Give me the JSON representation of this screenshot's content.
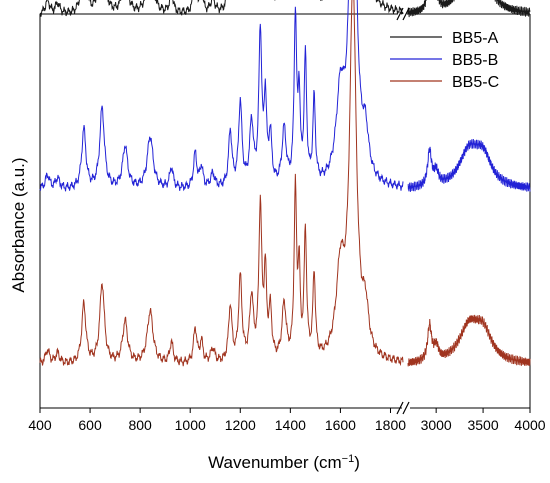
{
  "chart_data": {
    "type": "line",
    "xlabel": "Wavenumber (cm",
    "xlabel_superscript": "−1",
    "xlabel_suffix": ")",
    "ylabel": "Absorbance (a.u.)",
    "x_axis": {
      "segments": [
        {
          "range": [
            400,
            1850
          ],
          "ticks": [
            400,
            600,
            800,
            1000,
            1200,
            1400,
            1600,
            1800
          ]
        },
        {
          "range": [
            2700,
            4000
          ],
          "ticks": [
            3000,
            3500,
            4000
          ]
        }
      ],
      "break_between": [
        1850,
        2700
      ]
    },
    "y_axis": {
      "ticks_visible": false,
      "range": [
        0,
        1
      ]
    },
    "grid": false,
    "legend_placement": "top-right",
    "series": [
      {
        "name": "BB5-A",
        "color": "#1a1a1a",
        "offset": 0.5
      },
      {
        "name": "BB5-B",
        "color": "#2323d6",
        "offset": 0.25
      },
      {
        "name": "BB5-C",
        "color": "#a0341f",
        "offset": 0.0
      }
    ],
    "spectrum_profile": {
      "baseline": 0.03,
      "peaks": [
        [
          430,
          0.02,
          10
        ],
        [
          470,
          0.015,
          10
        ],
        [
          575,
          0.085,
          10
        ],
        [
          648,
          0.115,
          11
        ],
        [
          740,
          0.06,
          12
        ],
        [
          840,
          0.075,
          14
        ],
        [
          925,
          0.03,
          8
        ],
        [
          1020,
          0.05,
          8
        ],
        [
          1045,
          0.03,
          7
        ],
        [
          1090,
          0.02,
          10
        ],
        [
          1160,
          0.08,
          8
        ],
        [
          1200,
          0.12,
          8
        ],
        [
          1245,
          0.09,
          9
        ],
        [
          1280,
          0.22,
          7
        ],
        [
          1300,
          0.12,
          6
        ],
        [
          1320,
          0.07,
          7
        ],
        [
          1375,
          0.08,
          10
        ],
        [
          1420,
          0.24,
          6
        ],
        [
          1435,
          0.12,
          5
        ],
        [
          1460,
          0.18,
          6
        ],
        [
          1495,
          0.12,
          6
        ],
        [
          1600,
          0.12,
          20
        ],
        [
          1650,
          0.53,
          16
        ],
        [
          1700,
          0.06,
          15
        ],
        [
          2930,
          0.05,
          25
        ],
        [
          3000,
          0.02,
          30
        ],
        [
          3350,
          0.05,
          130
        ],
        [
          3500,
          0.04,
          110
        ]
      ]
    }
  }
}
